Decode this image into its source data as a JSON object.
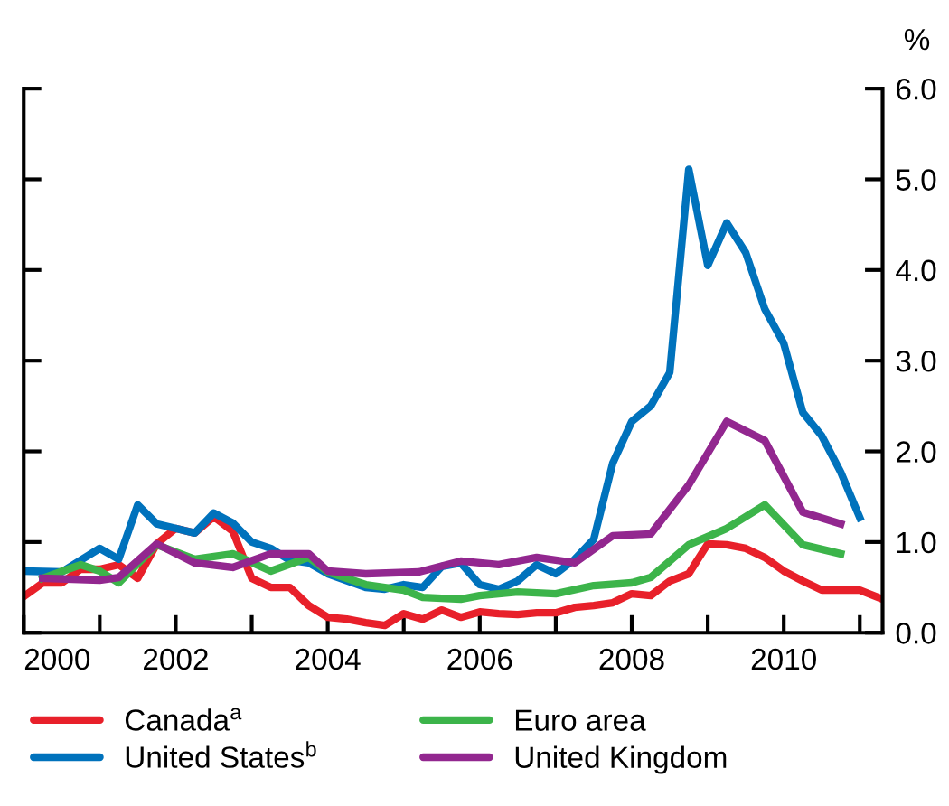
{
  "chart_data": {
    "type": "line",
    "ylabel": "%",
    "legend": "bottom",
    "grid": false,
    "marker": "none",
    "line_style": "solid",
    "xlim": [
      2000,
      2011.3
    ],
    "xticks": [
      2000,
      {
        "value": 2001,
        "label": null
      },
      2002,
      {
        "value": 2003,
        "label": null
      },
      2004,
      {
        "value": 2005,
        "label": null
      },
      2006,
      {
        "value": 2007,
        "label": null
      },
      2008,
      {
        "value": 2009,
        "label": null
      },
      2010,
      {
        "value": 2011,
        "label": null
      }
    ],
    "ylim": [
      0,
      6
    ],
    "yticks": [
      {
        "value": 0,
        "label": "0.0"
      },
      {
        "value": 1,
        "label": "1.0"
      },
      {
        "value": 2,
        "label": "2.0"
      },
      {
        "value": 3,
        "label": "3.0"
      },
      {
        "value": 4,
        "label": "4.0"
      },
      {
        "value": 5,
        "label": "5.0"
      },
      {
        "value": 6,
        "label": "6.0"
      }
    ],
    "series": [
      {
        "name": "Canada$^{a}$",
        "color": "#e8202a",
        "x": [
          2000,
          2000.25,
          2000.5,
          2000.75,
          2001,
          2001.25,
          2001.5,
          2001.75,
          2002,
          2002.25,
          2002.5,
          2002.75,
          2003,
          2003.25,
          2003.5,
          2003.75,
          2004,
          2004.25,
          2004.5,
          2004.75,
          2005,
          2005.25,
          2005.5,
          2005.75,
          2006,
          2006.25,
          2006.5,
          2006.75,
          2007,
          2007.25,
          2007.5,
          2007.75,
          2008,
          2008.25,
          2008.5,
          2008.75,
          2009,
          2009.25,
          2009.5,
          2009.75,
          2010,
          2010.25,
          2010.5,
          2010.75,
          2011,
          2011.27
        ],
        "values": [
          0.4,
          0.55,
          0.55,
          0.7,
          0.7,
          0.75,
          0.6,
          0.98,
          1.15,
          1.1,
          1.28,
          1.12,
          0.6,
          0.5,
          0.5,
          0.3,
          0.17,
          0.15,
          0.11,
          0.08,
          0.21,
          0.15,
          0.25,
          0.17,
          0.23,
          0.21,
          0.2,
          0.22,
          0.22,
          0.28,
          0.3,
          0.33,
          0.43,
          0.41,
          0.57,
          0.65,
          0.98,
          0.97,
          0.93,
          0.83,
          0.68,
          0.57,
          0.47,
          0.47,
          0.47,
          0.38
        ]
      },
      {
        "name": "United States$^{b}$",
        "color": "#0072bc",
        "x": [
          2000,
          2000.5,
          2001,
          2001.25,
          2001.5,
          2001.75,
          2002.25,
          2002.5,
          2002.75,
          2003,
          2003.25,
          2003.5,
          2003.75,
          2004,
          2004.5,
          2004.75,
          2005,
          2005.25,
          2005.5,
          2005.75,
          2006,
          2006.25,
          2006.5,
          2006.75,
          2007,
          2007.25,
          2007.5,
          2007.75,
          2008,
          2008.25,
          2008.5,
          2008.75,
          2009,
          2009.25,
          2009.5,
          2009.75,
          2010,
          2010.25,
          2010.5,
          2010.75,
          2011
        ],
        "values": [
          0.68,
          0.67,
          0.93,
          0.81,
          1.41,
          1.2,
          1.1,
          1.32,
          1.21,
          1.0,
          0.93,
          0.8,
          0.77,
          0.65,
          0.5,
          0.48,
          0.53,
          0.5,
          0.73,
          0.77,
          0.53,
          0.48,
          0.57,
          0.75,
          0.65,
          0.81,
          1.03,
          1.87,
          2.33,
          2.5,
          2.87,
          5.11,
          4.05,
          4.52,
          4.19,
          3.57,
          3.19,
          2.43,
          2.17,
          1.77,
          1.27
        ]
      },
      {
        "name": "Euro area",
        "color": "#3cb44a",
        "x": [
          2000.25,
          2000.75,
          2001,
          2001.25,
          2001.75,
          2002.25,
          2002.75,
          2003.25,
          2003.75,
          2004,
          2004.5,
          2005,
          2005.25,
          2005.75,
          2006,
          2006.5,
          2007,
          2007.5,
          2008,
          2008.25,
          2008.75,
          2009.25,
          2009.75,
          2010.25,
          2010.75
        ],
        "values": [
          0.6,
          0.75,
          0.68,
          0.55,
          0.97,
          0.81,
          0.87,
          0.68,
          0.83,
          0.67,
          0.53,
          0.47,
          0.39,
          0.37,
          0.41,
          0.45,
          0.43,
          0.52,
          0.55,
          0.61,
          0.97,
          1.15,
          1.41,
          0.97,
          0.87
        ]
      },
      {
        "name": "United Kingdom",
        "color": "#92278f",
        "x": [
          2000.25,
          2001,
          2001.25,
          2001.75,
          2002.25,
          2002.75,
          2003.25,
          2003.75,
          2004,
          2004.5,
          2005.2,
          2005.75,
          2006.25,
          2006.75,
          2007.25,
          2007.75,
          2008.25,
          2008.75,
          2009.25,
          2009.75,
          2010.25,
          2010.75
        ],
        "values": [
          0.6,
          0.58,
          0.61,
          0.98,
          0.77,
          0.72,
          0.87,
          0.87,
          0.68,
          0.65,
          0.67,
          0.79,
          0.75,
          0.83,
          0.77,
          1.07,
          1.09,
          1.63,
          2.33,
          2.12,
          1.33,
          1.2
        ]
      }
    ]
  }
}
